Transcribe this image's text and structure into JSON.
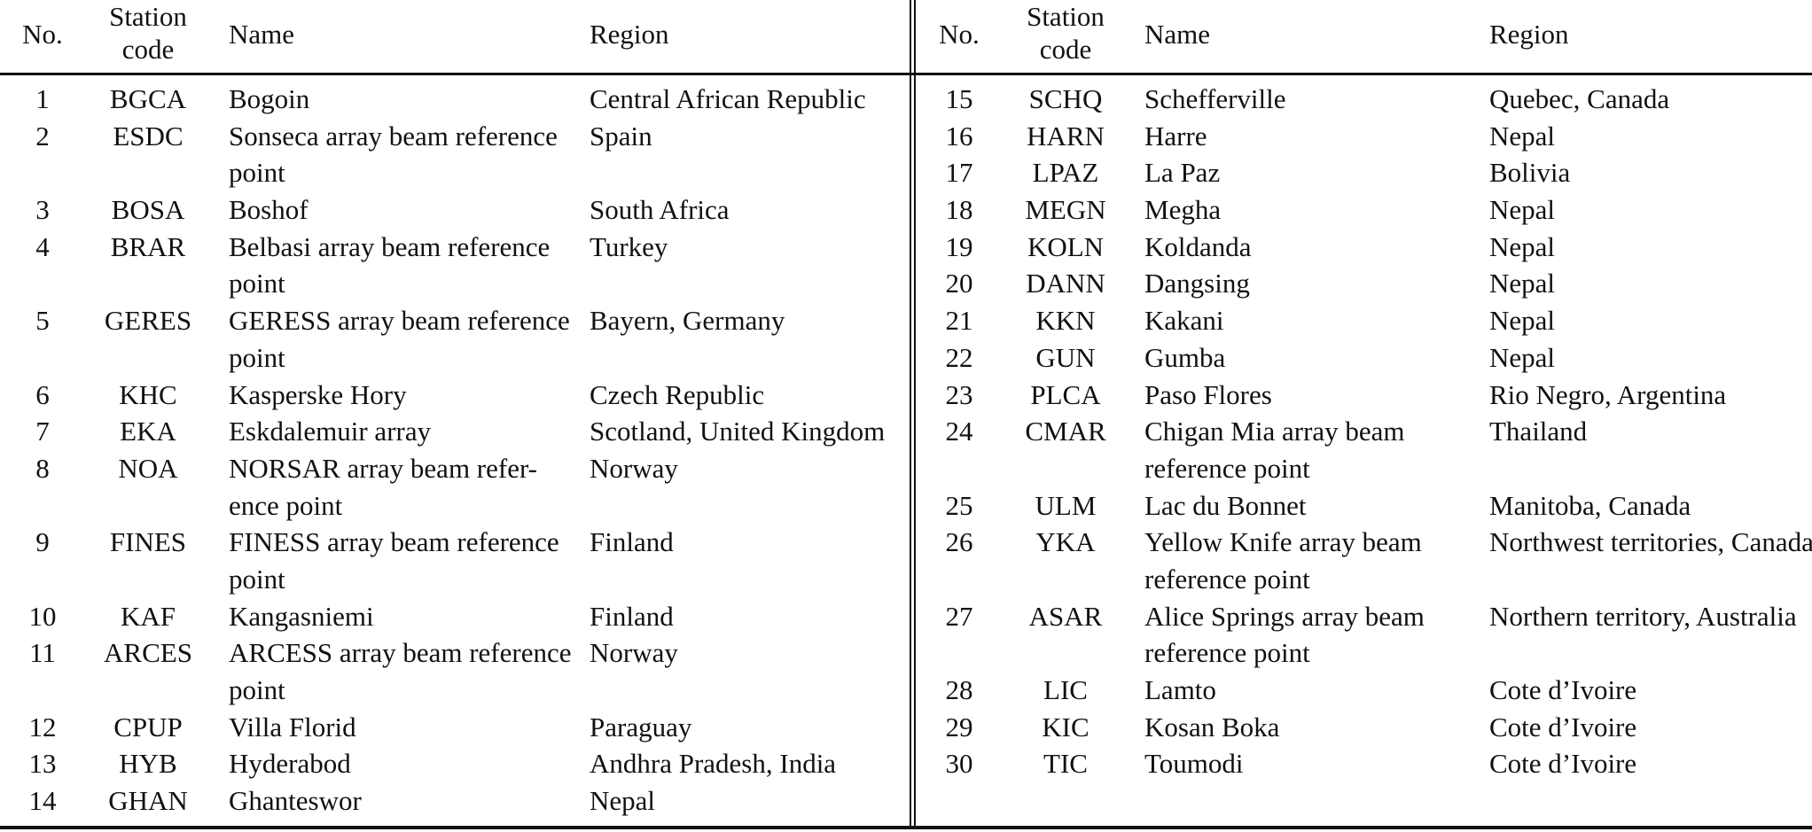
{
  "headers": {
    "no": "No.",
    "code_line1": "Station",
    "code_line2": "code",
    "name": "Name",
    "region": "Region"
  },
  "left_rows": [
    {
      "no": "1",
      "code": "BGCA",
      "name": [
        "Bogoin"
      ],
      "region": "Central African Republic"
    },
    {
      "no": "2",
      "code": "ESDC",
      "name": [
        "Sonseca array beam reference",
        "point"
      ],
      "region": "Spain"
    },
    {
      "no": "3",
      "code": "BOSA",
      "name": [
        "Boshof"
      ],
      "region": "South Africa"
    },
    {
      "no": "4",
      "code": "BRAR",
      "name": [
        "Belbasi array beam reference",
        "point"
      ],
      "region": "Turkey"
    },
    {
      "no": "5",
      "code": "GERES",
      "name": [
        "GERESS array beam reference",
        "point"
      ],
      "region": "Bayern, Germany"
    },
    {
      "no": "6",
      "code": "KHC",
      "name": [
        "Kasperske Hory"
      ],
      "region": "Czech Republic"
    },
    {
      "no": "7",
      "code": "EKA",
      "name": [
        "Eskdalemuir array"
      ],
      "region": "Scotland, United Kingdom"
    },
    {
      "no": "8",
      "code": "NOA",
      "name": [
        "NORSAR array beam refer-",
        "ence point"
      ],
      "region": "Norway"
    },
    {
      "no": "9",
      "code": "FINES",
      "name": [
        "FINESS array beam reference",
        "point"
      ],
      "region": "Finland"
    },
    {
      "no": "10",
      "code": "KAF",
      "name": [
        "Kangasniemi"
      ],
      "region": "Finland"
    },
    {
      "no": "11",
      "code": "ARCES",
      "name": [
        "ARCESS array beam reference",
        "point"
      ],
      "region": "Norway"
    },
    {
      "no": "12",
      "code": "CPUP",
      "name": [
        "Villa Florid"
      ],
      "region": "Paraguay"
    },
    {
      "no": "13",
      "code": "HYB",
      "name": [
        "Hyderabod"
      ],
      "region": "Andhra Pradesh, India"
    },
    {
      "no": "14",
      "code": "GHAN",
      "name": [
        "Ghanteswor"
      ],
      "region": "Nepal"
    }
  ],
  "right_rows": [
    {
      "no": "15",
      "code": "SCHQ",
      "name": [
        "Schefferville"
      ],
      "region": "Quebec, Canada"
    },
    {
      "no": "16",
      "code": "HARN",
      "name": [
        "Harre"
      ],
      "region": "Nepal"
    },
    {
      "no": "17",
      "code": "LPAZ",
      "name": [
        "La Paz"
      ],
      "region": "Bolivia"
    },
    {
      "no": "18",
      "code": "MEGN",
      "name": [
        "Megha"
      ],
      "region": "Nepal"
    },
    {
      "no": "19",
      "code": "KOLN",
      "name": [
        "Koldanda"
      ],
      "region": "Nepal"
    },
    {
      "no": "20",
      "code": "DANN",
      "name": [
        "Dangsing"
      ],
      "region": "Nepal"
    },
    {
      "no": "21",
      "code": "KKN",
      "name": [
        "Kakani"
      ],
      "region": "Nepal"
    },
    {
      "no": "22",
      "code": "GUN",
      "name": [
        "Gumba"
      ],
      "region": "Nepal"
    },
    {
      "no": "23",
      "code": "PLCA",
      "name": [
        "Paso Flores"
      ],
      "region": "Rio Negro, Argentina"
    },
    {
      "no": "24",
      "code": "CMAR",
      "name": [
        "Chigan Mia array beam",
        "reference point"
      ],
      "region": "Thailand"
    },
    {
      "no": "25",
      "code": "ULM",
      "name": [
        "Lac du Bonnet"
      ],
      "region": "Manitoba, Canada"
    },
    {
      "no": "26",
      "code": "YKA",
      "name": [
        "Yellow Knife array beam",
        "reference point"
      ],
      "region": "Northwest territories, Canada"
    },
    {
      "no": "27",
      "code": "ASAR",
      "name": [
        "Alice Springs array beam",
        "reference point"
      ],
      "region": "Northern territory, Australia"
    },
    {
      "no": "28",
      "code": "LIC",
      "name": [
        "Lamto"
      ],
      "region": "Cote d’Ivoire"
    },
    {
      "no": "29",
      "code": "KIC",
      "name": [
        "Kosan Boka"
      ],
      "region": "Cote d’Ivoire"
    },
    {
      "no": "30",
      "code": "TIC",
      "name": [
        "Toumodi"
      ],
      "region": "Cote d’Ivoire"
    }
  ]
}
